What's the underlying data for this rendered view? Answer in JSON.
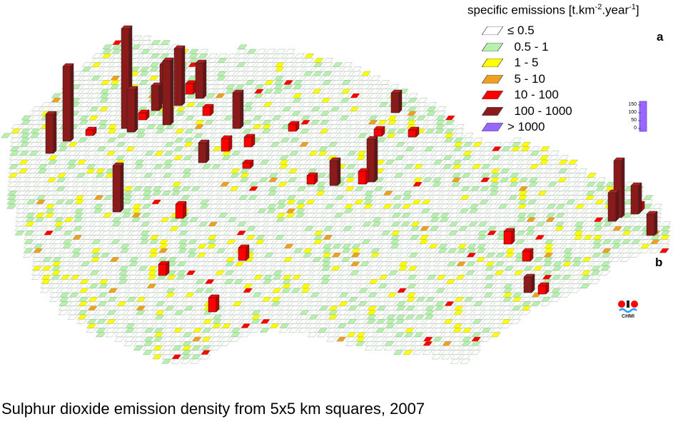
{
  "legend": {
    "title_prefix": "specific emissions [t.km",
    "title_sup1": "-2",
    "title_mid": ".year",
    "title_sup2": "-1",
    "title_suffix": "]",
    "items": [
      {
        "label": "≤ 0.5",
        "color": "#ffffff"
      },
      {
        "label": "  0.5 - 1",
        "color": "#b8f0b0"
      },
      {
        "label": "  1 - 5",
        "color": "#ffff00"
      },
      {
        "label": "  5 - 10",
        "color": "#f0a020"
      },
      {
        "label": "  10 - 100",
        "color": "#ff0000"
      },
      {
        "label": "  100 - 1000",
        "color": "#8b1a1a"
      },
      {
        "label": "> 1000",
        "color": "#9966ff"
      }
    ]
  },
  "scale": {
    "ticks": [
      "150",
      "100",
      "50",
      "0"
    ],
    "color": "#9966ff"
  },
  "panels": {
    "a": "a",
    "b": "b"
  },
  "logo": {
    "text": "CHMI",
    "dot_color": "#ff0000",
    "wave_color": "#3399ff"
  },
  "caption": "Sulphur dioxide emission density from 5x5 km squares, 2007",
  "map_data": {
    "type": "3d-grid-bars",
    "region": "Czech Republic",
    "cell_size_km": 5,
    "year": 2007,
    "category_colors": {
      "class_0_5": "#ffffff",
      "class_1": "#b8f0b0",
      "class_5": "#ffff00",
      "class_10": "#f0a020",
      "class_100": "#ff0000",
      "class_1000": "#8b1a1a"
    }
  }
}
